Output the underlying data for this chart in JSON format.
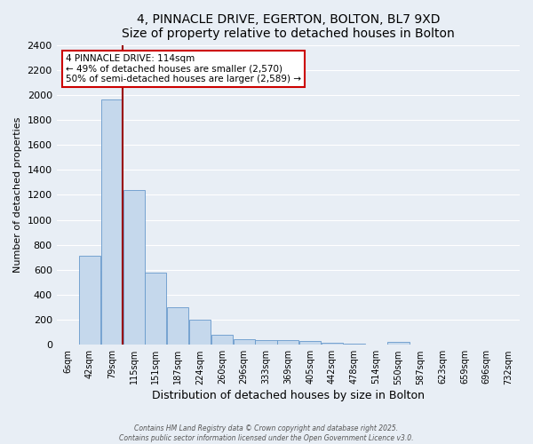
{
  "title": "4, PINNACLE DRIVE, EGERTON, BOLTON, BL7 9XD",
  "subtitle": "Size of property relative to detached houses in Bolton",
  "xlabel": "Distribution of detached houses by size in Bolton",
  "ylabel": "Number of detached properties",
  "bar_color": "#c5d8ec",
  "bar_edge_color": "#6699cc",
  "bg_color": "#e8eef5",
  "grid_color": "#ffffff",
  "categories": [
    "6sqm",
    "42sqm",
    "79sqm",
    "115sqm",
    "151sqm",
    "187sqm",
    "224sqm",
    "260sqm",
    "296sqm",
    "333sqm",
    "369sqm",
    "405sqm",
    "442sqm",
    "478sqm",
    "514sqm",
    "550sqm",
    "587sqm",
    "623sqm",
    "659sqm",
    "696sqm",
    "732sqm"
  ],
  "values": [
    5,
    710,
    1960,
    1240,
    575,
    300,
    200,
    80,
    45,
    40,
    35,
    30,
    20,
    10,
    5,
    25,
    5,
    5,
    2,
    2,
    2
  ],
  "ylim": [
    0,
    2400
  ],
  "yticks": [
    0,
    200,
    400,
    600,
    800,
    1000,
    1200,
    1400,
    1600,
    1800,
    2000,
    2200,
    2400
  ],
  "vline_x_index": 3,
  "vline_color": "#990000",
  "annotation_title": "4 PINNACLE DRIVE: 114sqm",
  "annotation_line1": "← 49% of detached houses are smaller (2,570)",
  "annotation_line2": "50% of semi-detached houses are larger (2,589) →",
  "annotation_box_color": "white",
  "annotation_box_edge": "#cc0000",
  "footnote1": "Contains HM Land Registry data © Crown copyright and database right 2025.",
  "footnote2": "Contains public sector information licensed under the Open Government Licence v3.0."
}
